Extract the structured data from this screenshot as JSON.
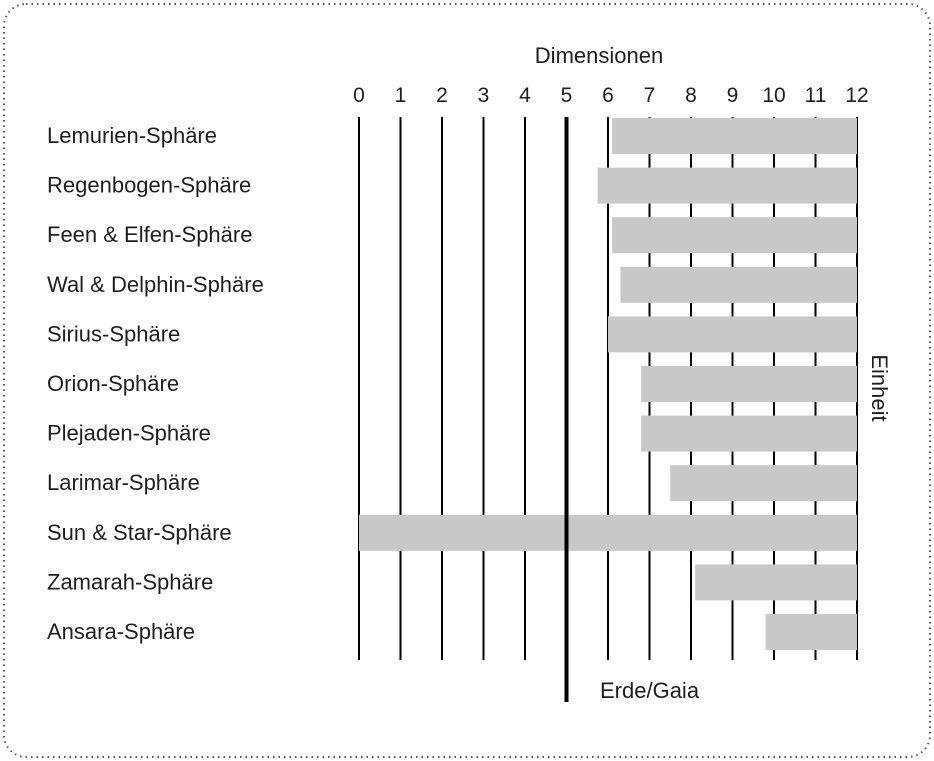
{
  "chart_data": {
    "type": "bar",
    "title": "",
    "xlabel": "Dimensionen",
    "ylabel": "",
    "right_label": "Einheit",
    "marker_label": "Erde/Gaia",
    "marker_value": 5,
    "xlim": [
      0,
      12
    ],
    "x_ticks": [
      0,
      1,
      2,
      3,
      4,
      5,
      6,
      7,
      8,
      9,
      10,
      11,
      12
    ],
    "grid": true,
    "categories": [
      "Lemurien-Sphäre",
      "Regenbogen-Sphäre",
      "Feen & Elfen-Sphäre",
      "Wal & Delphin-Sphäre",
      "Sirius-Sphäre",
      "Orion-Sphäre",
      "Plejaden-Sphäre",
      "Larimar-Sphäre",
      "Sun & Star-Sphäre",
      "Zamarah-Sphäre",
      "Ansara-Sphäre"
    ],
    "ranges": [
      [
        6.1,
        12
      ],
      [
        5.75,
        12
      ],
      [
        6.1,
        12
      ],
      [
        6.3,
        12
      ],
      [
        6.0,
        12
      ],
      [
        6.8,
        12
      ],
      [
        6.8,
        12
      ],
      [
        7.5,
        12
      ],
      [
        0,
        12
      ],
      [
        8.1,
        12
      ],
      [
        9.8,
        12
      ]
    ],
    "colors": {
      "bar": "#c8c8c8",
      "grid": "#000000",
      "frame": "#555555",
      "text": "#1e1e1e"
    }
  }
}
